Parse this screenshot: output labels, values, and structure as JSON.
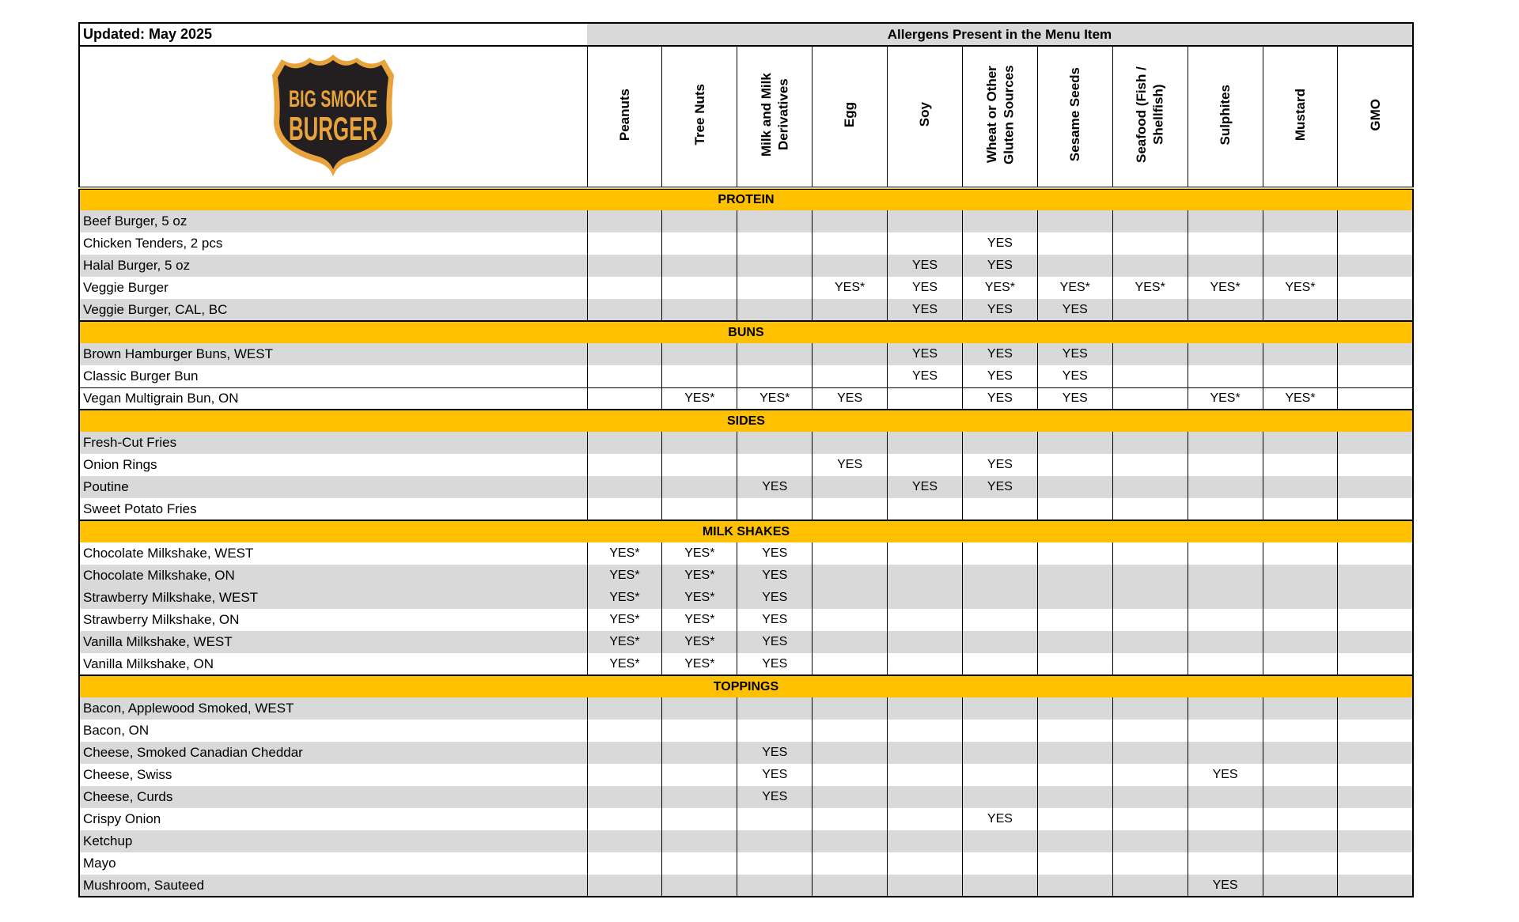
{
  "updated": "Updated: May 2025",
  "allergens_title": "Allergens Present in the Menu Item",
  "logo": {
    "line1": "BIG SMOKE",
    "line2": "BURGER",
    "colors": {
      "shield": "#231f20",
      "accent": "#e8a33d"
    }
  },
  "columns": [
    "Peanuts",
    "Tree Nuts",
    "Milk and Milk Derivatives",
    "Egg",
    "Soy",
    "Wheat or Other Gluten Sources",
    "Sesame Seeds",
    "Seafood (Fish / Shellfish)",
    "Sulphites",
    "Mustard",
    "GMO"
  ],
  "colors": {
    "section": "#ffc000",
    "stripe": "#d9d9d9"
  },
  "sections": [
    {
      "title": "PROTEIN",
      "items": [
        {
          "name": "Beef Burger, 5 oz",
          "shaded": true,
          "values": [
            "",
            "",
            "",
            "",
            "",
            "",
            "",
            "",
            "",
            "",
            ""
          ]
        },
        {
          "name": "Chicken Tenders, 2 pcs",
          "shaded": false,
          "values": [
            "",
            "",
            "",
            "",
            "",
            "YES",
            "",
            "",
            "",
            "",
            ""
          ]
        },
        {
          "name": "Halal Burger, 5 oz",
          "shaded": true,
          "values": [
            "",
            "",
            "",
            "",
            "YES",
            "YES",
            "",
            "",
            "",
            "",
            ""
          ]
        },
        {
          "name": "Veggie Burger",
          "shaded": false,
          "values": [
            "",
            "",
            "",
            "YES*",
            "YES",
            "YES*",
            "YES*",
            "YES*",
            "YES*",
            "YES*",
            ""
          ]
        },
        {
          "name": "Veggie Burger, CAL, BC",
          "shaded": true,
          "values": [
            "",
            "",
            "",
            "",
            "YES",
            "YES",
            "YES",
            "",
            "",
            "",
            ""
          ]
        }
      ]
    },
    {
      "title": "BUNS",
      "items": [
        {
          "name": "Brown Hamburger Buns, WEST",
          "shaded": true,
          "values": [
            "",
            "",
            "",
            "",
            "YES",
            "YES",
            "YES",
            "",
            "",
            "",
            ""
          ]
        },
        {
          "name": "Classic Burger Bun",
          "shaded": false,
          "values": [
            "",
            "",
            "",
            "",
            "YES",
            "YES",
            "YES",
            "",
            "",
            "",
            ""
          ]
        },
        {
          "name": "Vegan Multigrain Bun,  ON",
          "shaded": false,
          "values": [
            "",
            "YES*",
            "YES*",
            "YES",
            "",
            "YES",
            "YES",
            "",
            "YES*",
            "YES*",
            ""
          ]
        }
      ]
    },
    {
      "title": "SIDES",
      "items": [
        {
          "name": "Fresh-Cut Fries",
          "shaded": true,
          "values": [
            "",
            "",
            "",
            "",
            "",
            "",
            "",
            "",
            "",
            "",
            ""
          ]
        },
        {
          "name": "Onion Rings",
          "shaded": false,
          "values": [
            "",
            "",
            "",
            "YES",
            "",
            "YES",
            "",
            "",
            "",
            "",
            ""
          ]
        },
        {
          "name": "Poutine",
          "shaded": true,
          "values": [
            "",
            "",
            "YES",
            "",
            "YES",
            "YES",
            "",
            "",
            "",
            "",
            ""
          ]
        },
        {
          "name": "Sweet Potato Fries",
          "shaded": false,
          "values": [
            "",
            "",
            "",
            "",
            "",
            "",
            "",
            "",
            "",
            "",
            ""
          ]
        }
      ]
    },
    {
      "title": "MILK SHAKES",
      "items": [
        {
          "name": "Chocolate Milkshake, WEST",
          "shaded": false,
          "values": [
            "YES*",
            "YES*",
            "YES",
            "",
            "",
            "",
            "",
            "",
            "",
            "",
            ""
          ]
        },
        {
          "name": "Chocolate Milkshake, ON",
          "shaded": true,
          "values": [
            "YES*",
            "YES*",
            "YES",
            "",
            "",
            "",
            "",
            "",
            "",
            "",
            ""
          ]
        },
        {
          "name": "Strawberry Milkshake, WEST",
          "shaded": true,
          "values": [
            "YES*",
            "YES*",
            "YES",
            "",
            "",
            "",
            "",
            "",
            "",
            "",
            ""
          ]
        },
        {
          "name": "Strawberry Milkshake, ON",
          "shaded": false,
          "values": [
            "YES*",
            "YES*",
            "YES",
            "",
            "",
            "",
            "",
            "",
            "",
            "",
            ""
          ]
        },
        {
          "name": "Vanilla Milkshake, WEST",
          "shaded": true,
          "values": [
            "YES*",
            "YES*",
            "YES",
            "",
            "",
            "",
            "",
            "",
            "",
            "",
            ""
          ]
        },
        {
          "name": "Vanilla Milkshake, ON",
          "shaded": false,
          "values": [
            "YES*",
            "YES*",
            "YES",
            "",
            "",
            "",
            "",
            "",
            "",
            "",
            ""
          ]
        }
      ]
    },
    {
      "title": "TOPPINGS",
      "items": [
        {
          "name": "Bacon, Applewood Smoked, WEST",
          "shaded": true,
          "values": [
            "",
            "",
            "",
            "",
            "",
            "",
            "",
            "",
            "",
            "",
            ""
          ]
        },
        {
          "name": "Bacon, ON",
          "shaded": false,
          "values": [
            "",
            "",
            "",
            "",
            "",
            "",
            "",
            "",
            "",
            "",
            ""
          ]
        },
        {
          "name": "Cheese, Smoked Canadian Cheddar",
          "shaded": true,
          "values": [
            "",
            "",
            "YES",
            "",
            "",
            "",
            "",
            "",
            "",
            "",
            ""
          ]
        },
        {
          "name": "Cheese, Swiss",
          "shaded": false,
          "values": [
            "",
            "",
            "YES",
            "",
            "",
            "",
            "",
            "",
            "YES",
            "",
            ""
          ]
        },
        {
          "name": "Cheese, Curds",
          "shaded": true,
          "values": [
            "",
            "",
            "YES",
            "",
            "",
            "",
            "",
            "",
            "",
            "",
            ""
          ]
        },
        {
          "name": "Crispy Onion",
          "shaded": false,
          "values": [
            "",
            "",
            "",
            "",
            "",
            "YES",
            "",
            "",
            "",
            "",
            ""
          ]
        },
        {
          "name": "Ketchup",
          "shaded": true,
          "values": [
            "",
            "",
            "",
            "",
            "",
            "",
            "",
            "",
            "",
            "",
            ""
          ]
        },
        {
          "name": "Mayo",
          "shaded": false,
          "values": [
            "",
            "",
            "",
            "",
            "",
            "",
            "",
            "",
            "",
            "",
            ""
          ]
        },
        {
          "name": "Mushroom, Sauteed",
          "shaded": true,
          "values": [
            "",
            "",
            "",
            "",
            "",
            "",
            "",
            "",
            "YES",
            "",
            ""
          ]
        }
      ]
    }
  ]
}
